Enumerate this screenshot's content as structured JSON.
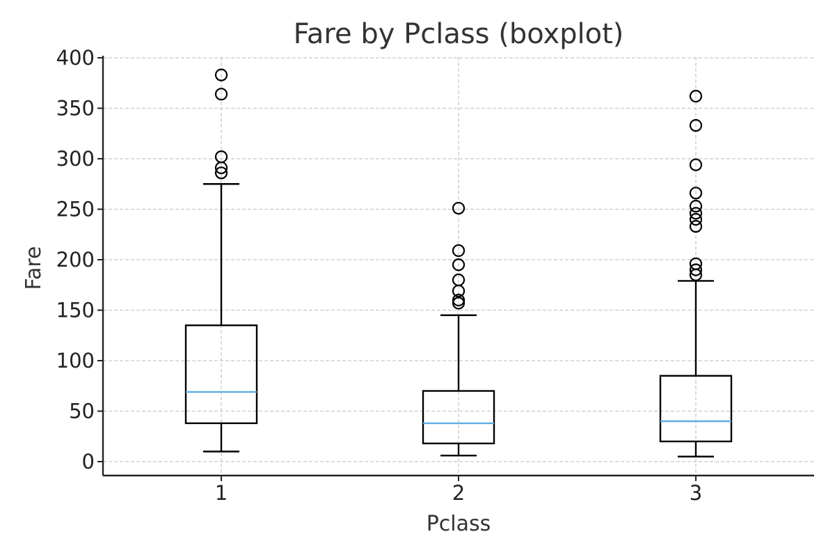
{
  "chart_data": {
    "type": "boxplot",
    "title": "Fare by Pclass (boxplot)",
    "xlabel": "Pclass",
    "ylabel": "Fare",
    "ylim": [
      -14,
      400
    ],
    "yticks": [
      0,
      50,
      100,
      150,
      200,
      250,
      300,
      350,
      400
    ],
    "grid": true,
    "colors": {
      "box": "#000000",
      "median": "#5DADE2",
      "grid": "#c8c8c8"
    },
    "categories": [
      "1",
      "2",
      "3"
    ],
    "boxes": [
      {
        "category": "1",
        "whisker_low": 10,
        "q1": 38,
        "median": 69,
        "q3": 135,
        "whisker_high": 275,
        "fliers": [
          286,
          291,
          302,
          364,
          383
        ]
      },
      {
        "category": "2",
        "whisker_low": 6,
        "q1": 18,
        "median": 38,
        "q3": 70,
        "whisker_high": 145,
        "fliers": [
          157,
          160,
          169,
          180,
          195,
          209,
          251
        ]
      },
      {
        "category": "3",
        "whisker_low": 5,
        "q1": 20,
        "median": 40,
        "q3": 85,
        "whisker_high": 179,
        "fliers": [
          185,
          190,
          196,
          233,
          240,
          246,
          253,
          266,
          294,
          333,
          362
        ]
      }
    ]
  }
}
